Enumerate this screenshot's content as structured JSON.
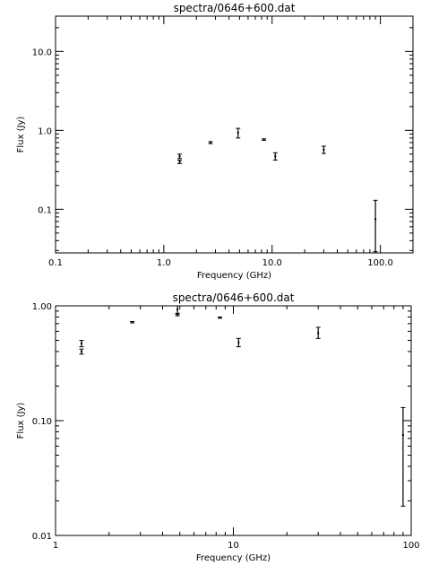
{
  "chart_data": [
    {
      "type": "scatter",
      "title": "spectra/0646+600.dat",
      "xlabel": "Frequency (GHz)",
      "ylabel": "Flux (Jy)",
      "xscale": "log",
      "yscale": "log",
      "xlim": [
        0.1,
        200
      ],
      "ylim": [
        0.028,
        28
      ],
      "xticks": [
        0.1,
        1,
        10,
        100
      ],
      "xtick_labels": [
        "0.1",
        "1.0",
        "10.0",
        "100.0"
      ],
      "yticks": [
        0.1,
        1,
        10
      ],
      "ytick_labels": [
        "0.1",
        "1.0",
        "10.0"
      ],
      "grid": false,
      "legend": "none",
      "points": [
        {
          "x": 1.4,
          "y": 0.47,
          "ylo": 0.44,
          "yhi": 0.5
        },
        {
          "x": 1.4,
          "y": 0.4,
          "ylo": 0.38,
          "yhi": 0.42
        },
        {
          "x": 2.7,
          "y": 0.7,
          "ylo": 0.68,
          "yhi": 0.72
        },
        {
          "x": 4.85,
          "y": 0.93,
          "ylo": 0.8,
          "yhi": 1.06
        },
        {
          "x": 8.4,
          "y": 0.76,
          "ylo": 0.75,
          "yhi": 0.78
        },
        {
          "x": 10.7,
          "y": 0.47,
          "ylo": 0.42,
          "yhi": 0.52
        },
        {
          "x": 30,
          "y": 0.57,
          "ylo": 0.51,
          "yhi": 0.63
        },
        {
          "x": 90,
          "y": 0.075,
          "ylo": 0.029,
          "yhi": 0.13
        }
      ]
    },
    {
      "type": "scatter",
      "title": "spectra/0646+600.dat",
      "xlabel": "Frequency (GHz)",
      "ylabel": "Flux (Jy)",
      "xscale": "log",
      "yscale": "log",
      "xlim": [
        1,
        100
      ],
      "ylim": [
        0.01,
        1.0
      ],
      "xticks": [
        1,
        10,
        100
      ],
      "xtick_labels": [
        "1",
        "10",
        "100"
      ],
      "yticks": [
        0.01,
        0.1,
        1.0
      ],
      "ytick_labels": [
        "0.01",
        "0.10",
        "1.00"
      ],
      "grid": false,
      "legend": "none",
      "points": [
        {
          "x": 1.4,
          "y": 0.47,
          "ylo": 0.44,
          "yhi": 0.5
        },
        {
          "x": 1.4,
          "y": 0.4,
          "ylo": 0.38,
          "yhi": 0.42
        },
        {
          "x": 2.7,
          "y": 0.72,
          "ylo": 0.71,
          "yhi": 0.73
        },
        {
          "x": 4.85,
          "y": 0.93,
          "ylo": 0.85,
          "yhi": 1.0
        },
        {
          "x": 4.85,
          "y": 0.84,
          "ylo": 0.82,
          "yhi": 0.86
        },
        {
          "x": 8.4,
          "y": 0.79,
          "ylo": 0.78,
          "yhi": 0.8
        },
        {
          "x": 10.7,
          "y": 0.48,
          "ylo": 0.44,
          "yhi": 0.52
        },
        {
          "x": 30,
          "y": 0.58,
          "ylo": 0.52,
          "yhi": 0.65
        },
        {
          "x": 90,
          "y": 0.075,
          "ylo": 0.018,
          "yhi": 0.13
        }
      ]
    }
  ]
}
